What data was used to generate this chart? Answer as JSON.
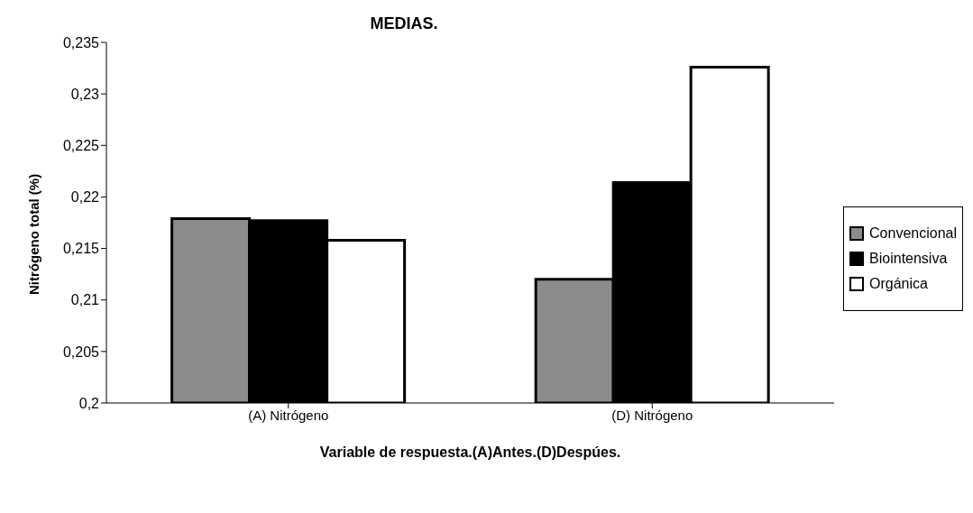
{
  "chart_data": {
    "type": "bar",
    "title": "MEDIAS.",
    "xlabel": "Variable de respuesta.(A)Antes.(D)Despúes.",
    "ylabel": "Nitrógeno total (%)",
    "categories": [
      "(A) Nitrógeno",
      "(D) Nitrógeno"
    ],
    "series": [
      {
        "name": "Convencional",
        "color": "#8c8c8c",
        "values": [
          0.2179,
          0.212
        ]
      },
      {
        "name": "Biointensiva",
        "color": "#000000",
        "values": [
          0.2177,
          0.2214
        ]
      },
      {
        "name": "Orgánica",
        "color": "#ffffff",
        "values": [
          0.2158,
          0.2326
        ]
      }
    ],
    "ylim": [
      0.2,
      0.235
    ],
    "yticks": [
      {
        "value": 0.2,
        "label": "0,2"
      },
      {
        "value": 0.205,
        "label": "0,205"
      },
      {
        "value": 0.21,
        "label": "0,21"
      },
      {
        "value": 0.215,
        "label": "0,215"
      },
      {
        "value": 0.22,
        "label": "0,22"
      },
      {
        "value": 0.225,
        "label": "0,225"
      },
      {
        "value": 0.23,
        "label": "0,23"
      },
      {
        "value": 0.235,
        "label": "0,235"
      }
    ],
    "grid": false,
    "legend": "right"
  }
}
